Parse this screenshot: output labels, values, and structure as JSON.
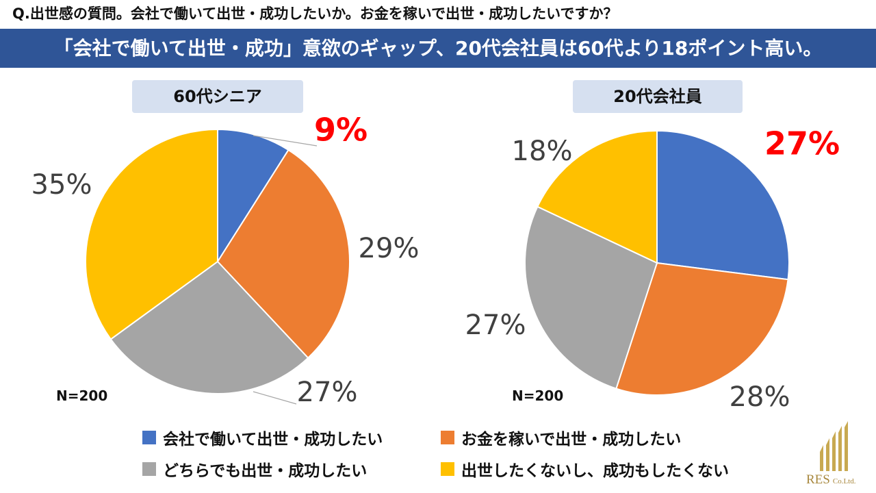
{
  "question": "Q.出世感の質問。会社で働いて出世・成功したいか。お金を稼いで出世・成功したいですか？",
  "banner": "「会社で働いて出世・成功」意欲のギャップ、20代会社員は60代より18ポイント高い。",
  "colors": {
    "blue": "#4472c4",
    "orange": "#ed7d31",
    "gray": "#a5a5a5",
    "yellow": "#ffc000",
    "highlight": "#ff0000",
    "label": "#404040"
  },
  "legend": [
    {
      "label": "会社で働いて出世・成功したい",
      "color": "#4472c4"
    },
    {
      "label": "お金を稼いで出世・成功したい",
      "color": "#ed7d31"
    },
    {
      "label": "どちらでも出世・成功したい",
      "color": "#a5a5a5"
    },
    {
      "label": "出世したくないし、成功もしたくない",
      "color": "#ffc000"
    }
  ],
  "chart_data": [
    {
      "type": "pie",
      "title": "60代シニア",
      "n_label": "N=200",
      "categories": [
        "会社で働いて出世・成功したい",
        "お金を稼いで出世・成功したい",
        "どちらでも出世・成功したい",
        "出世したくないし、成功もしたくない"
      ],
      "values": [
        9,
        29,
        27,
        35
      ],
      "value_labels": [
        "9%",
        "29%",
        "27%",
        "35%"
      ],
      "highlighted": [
        true,
        false,
        false,
        false
      ]
    },
    {
      "type": "pie",
      "title": "20代会社員",
      "n_label": "N=200",
      "categories": [
        "会社で働いて出世・成功したい",
        "お金を稼いで出世・成功したい",
        "どちらでも出世・成功したい",
        "出世したくないし、成功もしたくない"
      ],
      "values": [
        27,
        28,
        27,
        18
      ],
      "value_labels": [
        "27%",
        "28%",
        "27%",
        "18%"
      ],
      "highlighted": [
        true,
        false,
        false,
        false
      ]
    }
  ],
  "logo": {
    "name": "RES",
    "suffix": "Co.Ltd."
  }
}
